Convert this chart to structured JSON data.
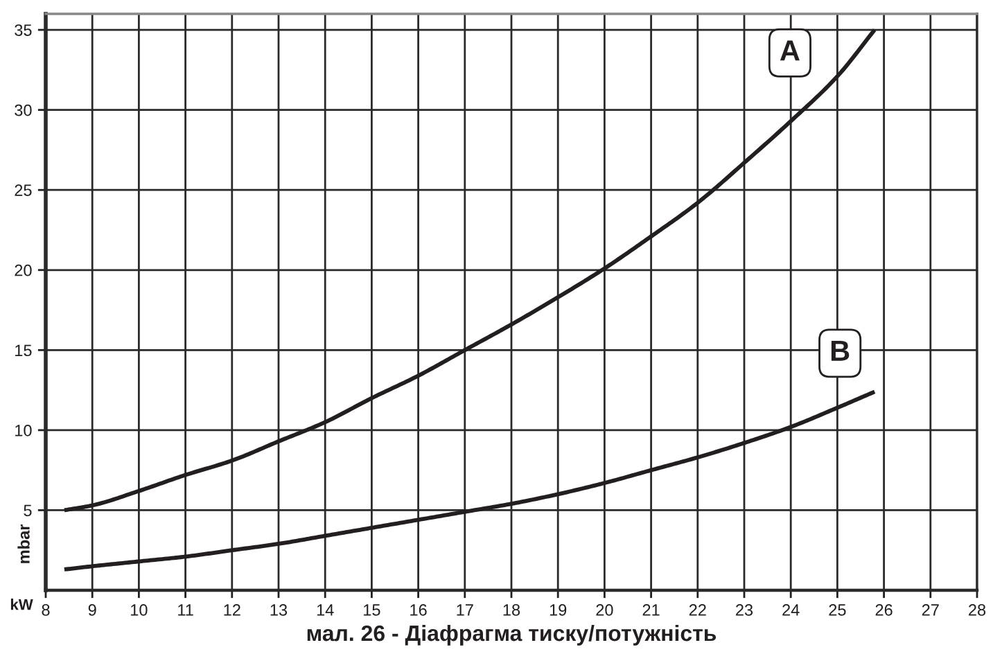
{
  "chart_data": {
    "type": "line",
    "title": "мал. 26 - Діафрагма тиску/потужність",
    "xlabel": "kW",
    "ylabel": "mbar",
    "x": [
      8.4,
      9,
      10,
      11,
      12,
      13,
      14,
      15,
      16,
      17,
      18,
      19,
      20,
      21,
      22,
      23,
      24,
      25,
      25.8
    ],
    "series": [
      {
        "name": "A",
        "color": "#231f20",
        "values": [
          5.0,
          5.3,
          6.2,
          7.2,
          8.1,
          9.3,
          10.5,
          12.0,
          13.4,
          15.0,
          16.6,
          18.3,
          20.1,
          22.1,
          24.2,
          26.7,
          29.3,
          32.1,
          35.0
        ]
      },
      {
        "name": "B",
        "color": "#231f20",
        "values": [
          1.3,
          1.5,
          1.8,
          2.1,
          2.5,
          2.9,
          3.4,
          3.9,
          4.4,
          4.9,
          5.4,
          6.0,
          6.7,
          7.5,
          8.3,
          9.2,
          10.2,
          11.4,
          12.4
        ]
      }
    ],
    "xlim": [
      8,
      28
    ],
    "ylim": [
      0,
      36
    ],
    "xticks": [
      8,
      9,
      10,
      11,
      12,
      13,
      14,
      15,
      16,
      17,
      18,
      19,
      20,
      21,
      22,
      23,
      24,
      25,
      26,
      27,
      28
    ],
    "yticks": [
      5,
      10,
      15,
      20,
      25,
      30,
      35
    ],
    "grid": true,
    "line_style": "solid"
  }
}
